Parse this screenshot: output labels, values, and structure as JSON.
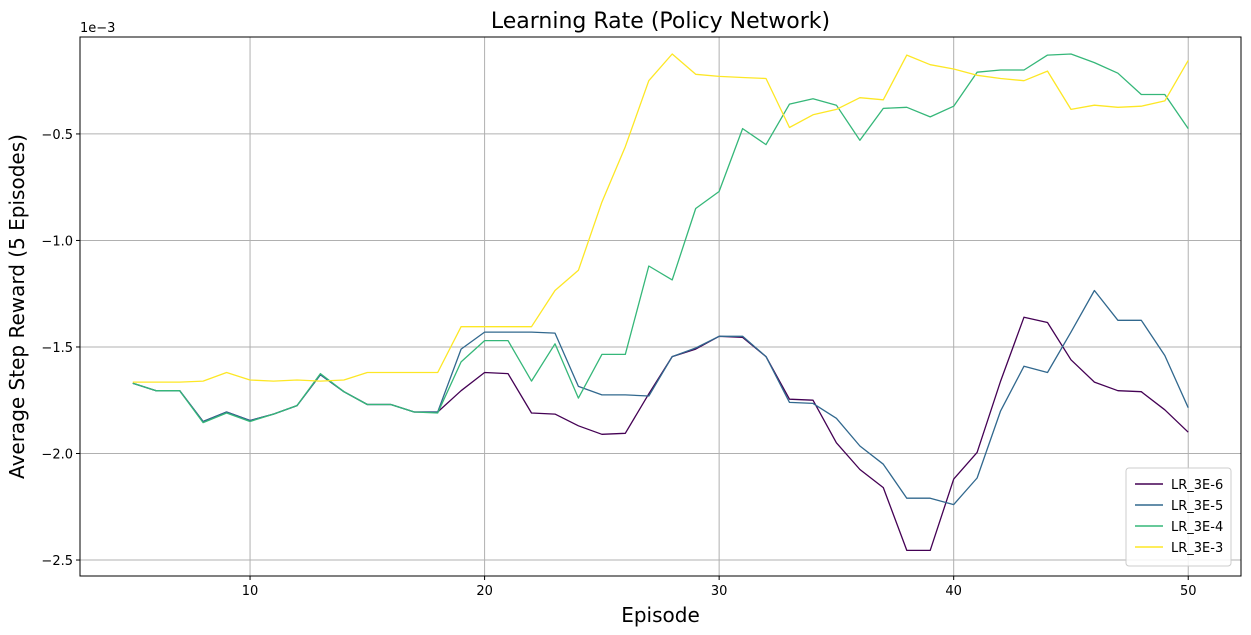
{
  "chart_data": {
    "type": "line",
    "title": "Learning Rate (Policy Network)",
    "xlabel": "Episode",
    "ylabel": "Average Step Reward (5 Episodes)",
    "y_offset_text": "1e−3",
    "xlim": [
      2.75,
      52.25
    ],
    "ylim": [
      -2.575,
      -0.045
    ],
    "xticks": [
      10,
      20,
      30,
      40,
      50
    ],
    "xtick_labels": [
      "10",
      "20",
      "30",
      "40",
      "50"
    ],
    "yticks": [
      -2.5,
      -2.0,
      -1.5,
      -1.0,
      -0.5
    ],
    "ytick_labels": [
      "−2.5",
      "−2.0",
      "−1.5",
      "−1.0",
      "−0.5"
    ],
    "grid": true,
    "legend_position": "lower-right",
    "x": [
      5,
      6,
      7,
      8,
      9,
      10,
      11,
      12,
      13,
      14,
      15,
      16,
      17,
      18,
      19,
      20,
      21,
      22,
      23,
      24,
      25,
      26,
      27,
      28,
      29,
      30,
      31,
      32,
      33,
      34,
      35,
      36,
      37,
      38,
      39,
      40,
      41,
      42,
      43,
      44,
      45,
      46,
      47,
      48,
      49,
      50
    ],
    "series": [
      {
        "name": "LR_3E-6",
        "color": "#440154",
        "values": [
          -1.67,
          -1.705,
          -1.705,
          -1.85,
          -1.805,
          -1.845,
          -1.815,
          -1.775,
          -1.63,
          -1.71,
          -1.77,
          -1.77,
          -1.805,
          -1.805,
          -1.705,
          -1.62,
          -1.625,
          -1.81,
          -1.815,
          -1.87,
          -1.91,
          -1.905,
          -1.72,
          -1.545,
          -1.51,
          -1.45,
          -1.455,
          -1.545,
          -1.745,
          -1.75,
          -1.95,
          -2.075,
          -2.16,
          -2.455,
          -2.455,
          -2.12,
          -1.995,
          -1.66,
          -1.36,
          -1.385,
          -1.56,
          -1.665,
          -1.705,
          -1.71,
          -1.795,
          -1.9
        ]
      },
      {
        "name": "LR_3E-5",
        "color": "#31688e",
        "values": [
          -1.67,
          -1.705,
          -1.705,
          -1.85,
          -1.805,
          -1.845,
          -1.815,
          -1.775,
          -1.63,
          -1.71,
          -1.77,
          -1.77,
          -1.805,
          -1.805,
          -1.51,
          -1.43,
          -1.43,
          -1.43,
          -1.435,
          -1.685,
          -1.725,
          -1.725,
          -1.73,
          -1.545,
          -1.505,
          -1.45,
          -1.45,
          -1.545,
          -1.76,
          -1.765,
          -1.835,
          -1.965,
          -2.05,
          -2.21,
          -2.21,
          -2.24,
          -2.115,
          -1.8,
          -1.59,
          -1.62,
          -1.43,
          -1.235,
          -1.375,
          -1.375,
          -1.54,
          -1.785
        ]
      },
      {
        "name": "LR_3E-4",
        "color": "#35b779",
        "values": [
          -1.67,
          -1.705,
          -1.705,
          -1.855,
          -1.81,
          -1.85,
          -1.815,
          -1.775,
          -1.625,
          -1.71,
          -1.77,
          -1.77,
          -1.805,
          -1.81,
          -1.57,
          -1.47,
          -1.47,
          -1.66,
          -1.485,
          -1.74,
          -1.535,
          -1.535,
          -1.12,
          -1.185,
          -0.85,
          -0.77,
          -0.475,
          -0.55,
          -0.36,
          -0.335,
          -0.365,
          -0.53,
          -0.38,
          -0.375,
          -0.42,
          -0.37,
          -0.21,
          -0.2,
          -0.2,
          -0.13,
          -0.125,
          -0.165,
          -0.215,
          -0.315,
          -0.315,
          -0.475
        ]
      },
      {
        "name": "LR_3E-3",
        "color": "#fde725",
        "values": [
          -1.665,
          -1.665,
          -1.665,
          -1.66,
          -1.62,
          -1.655,
          -1.66,
          -1.655,
          -1.66,
          -1.655,
          -1.62,
          -1.62,
          -1.62,
          -1.62,
          -1.405,
          -1.405,
          -1.405,
          -1.405,
          -1.235,
          -1.14,
          -0.82,
          -0.56,
          -0.25,
          -0.125,
          -0.22,
          -0.23,
          -0.235,
          -0.24,
          -0.47,
          -0.41,
          -0.385,
          -0.33,
          -0.34,
          -0.13,
          -0.175,
          -0.195,
          -0.225,
          -0.24,
          -0.25,
          -0.205,
          -0.385,
          -0.365,
          -0.375,
          -0.37,
          -0.345,
          -0.155
        ]
      }
    ]
  }
}
